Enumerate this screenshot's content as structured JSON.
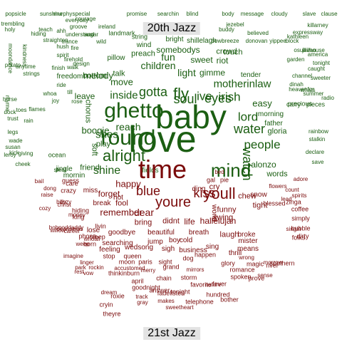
{
  "labels": {
    "top": "20th Jazz",
    "bottom": "21st Jazz"
  },
  "colors": {
    "top_cloud": "#1b5e12",
    "bottom_cloud": "#7a0a0a",
    "label_bg": "#e3e3e3"
  },
  "words": [
    {
      "t": "baby",
      "g": "top"
    },
    {
      "t": "love",
      "g": "top"
    },
    {
      "t": "ghetto",
      "g": "top"
    },
    {
      "t": "round",
      "g": "top"
    },
    {
      "t": "alright",
      "g": "top"
    },
    {
      "t": "mind",
      "g": "top"
    },
    {
      "t": "soul",
      "g": "top"
    },
    {
      "t": "eyes",
      "g": "top"
    },
    {
      "t": "gotta",
      "g": "top"
    },
    {
      "t": "fly",
      "g": "top"
    },
    {
      "t": "ive",
      "g": "top"
    },
    {
      "t": "irish",
      "g": "top"
    },
    {
      "t": "lord",
      "g": "top"
    },
    {
      "t": "water",
      "g": "top"
    },
    {
      "t": "watch",
      "g": "top"
    },
    {
      "t": "motherinlaw",
      "g": "top"
    },
    {
      "t": "shes",
      "g": "top"
    },
    {
      "t": "shine",
      "g": "top"
    },
    {
      "t": "people",
      "g": "top"
    },
    {
      "t": "inside",
      "g": "top"
    },
    {
      "t": "reach",
      "g": "top"
    },
    {
      "t": "boogie",
      "g": "top"
    },
    {
      "t": "melody",
      "g": "top"
    },
    {
      "t": "move",
      "g": "top"
    },
    {
      "t": "light",
      "g": "top"
    },
    {
      "t": "gimme",
      "g": "top"
    },
    {
      "t": "children",
      "g": "top"
    },
    {
      "t": "easy",
      "g": "top"
    },
    {
      "t": "fun",
      "g": "top"
    },
    {
      "t": "sweet",
      "g": "top"
    },
    {
      "t": "riot",
      "g": "top"
    },
    {
      "t": "somebodys",
      "g": "top"
    },
    {
      "t": "preach",
      "g": "top"
    },
    {
      "t": "bottom",
      "g": "top"
    },
    {
      "t": "talk",
      "g": "top"
    },
    {
      "t": "leave",
      "g": "top"
    },
    {
      "t": "touch",
      "g": "top"
    },
    {
      "t": "crowd",
      "g": "top"
    },
    {
      "t": "tender",
      "g": "top"
    },
    {
      "t": "morning",
      "g": "top"
    },
    {
      "t": "father",
      "g": "top"
    },
    {
      "t": "gloria",
      "g": "top"
    },
    {
      "t": "alonzo",
      "g": "top"
    },
    {
      "t": "words",
      "g": "top"
    },
    {
      "t": "fields",
      "g": "top"
    },
    {
      "t": "play",
      "g": "top"
    },
    {
      "t": "soft",
      "g": "top"
    },
    {
      "t": "chorus",
      "g": "top"
    },
    {
      "t": "friend",
      "g": "top"
    },
    {
      "t": "mornin",
      "g": "top"
    },
    {
      "t": "jingle",
      "g": "top"
    },
    {
      "t": "freedom",
      "g": "top"
    },
    {
      "t": "pillow",
      "g": "top"
    },
    {
      "t": "wind",
      "g": "top"
    },
    {
      "t": "bright",
      "g": "top"
    },
    {
      "t": "shillelagh",
      "g": "top"
    },
    {
      "t": "landmark",
      "g": "top"
    },
    {
      "t": "string",
      "g": "top"
    },
    {
      "t": "promise",
      "g": "top"
    },
    {
      "t": "searchin",
      "g": "top"
    },
    {
      "t": "blind",
      "g": "top"
    },
    {
      "t": "body",
      "g": "top"
    },
    {
      "t": "message",
      "g": "top"
    },
    {
      "t": "cloudy",
      "g": "top"
    },
    {
      "t": "slave",
      "g": "top"
    },
    {
      "t": "clause",
      "g": "top"
    },
    {
      "t": "popsicle",
      "g": "top"
    },
    {
      "t": "sunshine",
      "g": "top"
    },
    {
      "t": "special",
      "g": "top"
    },
    {
      "t": "trembling",
      "g": "top"
    },
    {
      "t": "everyday",
      "g": "top"
    },
    {
      "t": "courage",
      "g": "top"
    },
    {
      "t": "holy",
      "g": "top"
    },
    {
      "t": "teach",
      "g": "top"
    },
    {
      "t": "ahh",
      "g": "top"
    },
    {
      "t": "groove",
      "g": "top"
    },
    {
      "t": "ireland",
      "g": "top"
    },
    {
      "t": "understand",
      "g": "top"
    },
    {
      "t": "jezebel",
      "g": "top"
    },
    {
      "t": "buddy",
      "g": "top"
    },
    {
      "t": "believed",
      "g": "top"
    },
    {
      "t": "expressway",
      "g": "top"
    },
    {
      "t": "killarney",
      "g": "top"
    },
    {
      "t": "kathleen",
      "g": "top"
    },
    {
      "t": "wild",
      "g": "top"
    },
    {
      "t": "sugar",
      "g": "top"
    },
    {
      "t": "trance",
      "g": "top"
    },
    {
      "t": "hush",
      "g": "top"
    },
    {
      "t": "bowbreeze",
      "g": "top"
    },
    {
      "t": "donovan",
      "g": "top"
    },
    {
      "t": "yippee",
      "g": "top"
    },
    {
      "t": "block",
      "g": "top"
    },
    {
      "t": "osullivan",
      "g": "top"
    },
    {
      "t": "jailhouse",
      "g": "top"
    },
    {
      "t": "america",
      "g": "top"
    },
    {
      "t": "tonight",
      "g": "top"
    },
    {
      "t": "garden",
      "g": "top"
    },
    {
      "t": "caught",
      "g": "top"
    },
    {
      "t": "sweeter",
      "g": "top"
    },
    {
      "t": "channel",
      "g": "top"
    },
    {
      "t": "dinah",
      "g": "top"
    },
    {
      "t": "whats",
      "g": "top"
    },
    {
      "t": "summer",
      "g": "top"
    },
    {
      "t": "radio",
      "g": "top"
    },
    {
      "t": "heavenfor",
      "g": "top"
    },
    {
      "t": "pieces",
      "g": "top"
    },
    {
      "t": "precious",
      "g": "top"
    },
    {
      "t": "carry",
      "g": "top"
    },
    {
      "t": "stalkin",
      "g": "top"
    },
    {
      "t": "declare",
      "g": "top"
    },
    {
      "t": "rainbow",
      "g": "top"
    },
    {
      "t": "save",
      "g": "top"
    },
    {
      "t": "ocean",
      "g": "top"
    },
    {
      "t": "cheek",
      "g": "top"
    },
    {
      "t": "giving",
      "g": "top"
    },
    {
      "t": "kick",
      "g": "top"
    },
    {
      "t": "trust",
      "g": "top"
    },
    {
      "t": "rhyme",
      "g": "top"
    },
    {
      "t": "horse",
      "g": "top"
    },
    {
      "t": "toes",
      "g": "top"
    },
    {
      "t": "dock",
      "g": "top"
    },
    {
      "t": "rain",
      "g": "top"
    },
    {
      "t": "legs",
      "g": "top"
    },
    {
      "t": "wade",
      "g": "top"
    },
    {
      "t": "susan",
      "g": "top"
    },
    {
      "t": "leroy",
      "g": "top"
    },
    {
      "t": "steal",
      "g": "top"
    },
    {
      "t": "straighten",
      "g": "top"
    },
    {
      "t": "hiding",
      "g": "top"
    },
    {
      "t": "fire",
      "g": "top"
    },
    {
      "t": "firehold",
      "g": "top"
    },
    {
      "t": "spirit",
      "g": "top"
    },
    {
      "t": "walk",
      "g": "top"
    },
    {
      "t": "design",
      "g": "top"
    },
    {
      "t": "kindness",
      "g": "top"
    },
    {
      "t": "moondance",
      "g": "top"
    },
    {
      "t": "anytime",
      "g": "top"
    },
    {
      "t": "strings",
      "g": "top"
    },
    {
      "t": "potato",
      "g": "top"
    },
    {
      "t": "finish",
      "g": "top"
    },
    {
      "t": "murphy",
      "g": "top"
    },
    {
      "t": "ride",
      "g": "top"
    },
    {
      "t": "whoa",
      "g": "top"
    },
    {
      "t": "flames",
      "g": "top"
    },
    {
      "t": "joy",
      "g": "top"
    },
    {
      "t": "rose",
      "g": "top"
    },
    {
      "t": "till",
      "g": "top"
    },
    {
      "t": "time",
      "g": "bottom"
    },
    {
      "t": "youll",
      "g": "bottom"
    },
    {
      "t": "youre",
      "g": "bottom"
    },
    {
      "t": "kiss",
      "g": "bottom"
    },
    {
      "t": "blue",
      "g": "bottom"
    },
    {
      "t": "happy",
      "g": "bottom"
    },
    {
      "t": "dear",
      "g": "bottom"
    },
    {
      "t": "remember",
      "g": "bottom"
    },
    {
      "t": "bring",
      "g": "bottom"
    },
    {
      "t": "didnt",
      "g": "bottom"
    },
    {
      "t": "life",
      "g": "bottom"
    },
    {
      "t": "forget",
      "g": "bottom"
    },
    {
      "t": "fool",
      "g": "bottom"
    },
    {
      "t": "hot",
      "g": "bottom"
    },
    {
      "t": "break",
      "g": "bottom"
    },
    {
      "t": "miss",
      "g": "bottom"
    },
    {
      "t": "goodbye",
      "g": "bottom"
    },
    {
      "t": "beautiful",
      "g": "bottom"
    },
    {
      "t": "breath",
      "g": "bottom"
    },
    {
      "t": "searching",
      "g": "bottom"
    },
    {
      "t": "jump",
      "g": "bottom"
    },
    {
      "t": "boy",
      "g": "bottom"
    },
    {
      "t": "cold",
      "g": "bottom"
    },
    {
      "t": "feeling",
      "g": "bottom"
    },
    {
      "t": "wedsong",
      "g": "bottom"
    },
    {
      "t": "sigh",
      "g": "bottom"
    },
    {
      "t": "business",
      "g": "bottom"
    },
    {
      "t": "hallelujah",
      "g": "bottom"
    },
    {
      "t": "laugh",
      "g": "bottom"
    },
    {
      "t": "funny",
      "g": "bottom"
    },
    {
      "t": "swing",
      "g": "bottom"
    },
    {
      "t": "chew",
      "g": "bottom"
    },
    {
      "t": "snow",
      "g": "bottom"
    },
    {
      "t": "tight",
      "g": "bottom"
    },
    {
      "t": "cry",
      "g": "bottom"
    },
    {
      "t": "world",
      "g": "bottom"
    },
    {
      "t": "ding",
      "g": "bottom"
    },
    {
      "t": "broke",
      "g": "bottom"
    },
    {
      "t": "mister",
      "g": "bottom"
    },
    {
      "t": "sing",
      "g": "bottom"
    },
    {
      "t": "means",
      "g": "bottom"
    },
    {
      "t": "thrill",
      "g": "bottom"
    },
    {
      "t": "magic",
      "g": "bottom"
    },
    {
      "t": "river",
      "g": "bottom"
    },
    {
      "t": "southern",
      "g": "bottom"
    },
    {
      "t": "folks",
      "g": "bottom"
    },
    {
      "t": "blessed",
      "g": "bottom"
    },
    {
      "t": "zinga",
      "g": "bottom"
    },
    {
      "t": "coffee",
      "g": "bottom"
    },
    {
      "t": "simply",
      "g": "bottom"
    },
    {
      "t": "bubble",
      "g": "bottom"
    },
    {
      "t": "dirty",
      "g": "bottom"
    },
    {
      "t": "singin",
      "g": "bottom"
    },
    {
      "t": "flowers",
      "g": "bottom"
    },
    {
      "t": "adore",
      "g": "bottom"
    },
    {
      "t": "count",
      "g": "bottom"
    },
    {
      "t": "lead",
      "g": "bottom"
    },
    {
      "t": "spirits",
      "g": "bottom"
    },
    {
      "t": "cozy",
      "g": "bottom"
    },
    {
      "t": "money",
      "g": "bottom"
    },
    {
      "t": "hiding",
      "g": "bottom"
    },
    {
      "t": "king",
      "g": "bottom"
    },
    {
      "t": "lose",
      "g": "bottom"
    },
    {
      "t": "sleep",
      "g": "bottom"
    },
    {
      "t": "born",
      "g": "bottom"
    },
    {
      "t": "livin",
      "g": "bottom"
    },
    {
      "t": "phone",
      "g": "bottom"
    },
    {
      "t": "stop",
      "g": "bottom"
    },
    {
      "t": "moon",
      "g": "bottom"
    },
    {
      "t": "paris",
      "g": "bottom"
    },
    {
      "t": "sight",
      "g": "bottom"
    },
    {
      "t": "dog",
      "g": "bottom"
    },
    {
      "t": "happen",
      "g": "bottom"
    },
    {
      "t": "glory",
      "g": "bottom"
    },
    {
      "t": "romance",
      "g": "bottom"
    },
    {
      "t": "spoken",
      "g": "bottom"
    },
    {
      "t": "prove",
      "g": "bottom"
    },
    {
      "t": "grand",
      "g": "bottom"
    },
    {
      "t": "burn",
      "g": "bottom"
    },
    {
      "t": "queen",
      "g": "bottom"
    },
    {
      "t": "thinkin",
      "g": "bottom"
    },
    {
      "t": "storm",
      "g": "bottom"
    },
    {
      "t": "chain",
      "g": "bottom"
    },
    {
      "t": "goodnight",
      "g": "bottom"
    },
    {
      "t": "april",
      "g": "bottom"
    },
    {
      "t": "answer",
      "g": "bottom"
    },
    {
      "t": "tonight",
      "g": "bottom"
    },
    {
      "t": "hundred",
      "g": "bottom"
    },
    {
      "t": "favorite",
      "g": "bottom"
    },
    {
      "t": "fever",
      "g": "bottom"
    },
    {
      "t": "fadelisten",
      "g": "bottom"
    },
    {
      "t": "makes",
      "g": "bottom"
    },
    {
      "t": "sweetheart",
      "g": "bottom"
    },
    {
      "t": "telephone",
      "g": "bottom"
    },
    {
      "t": "bother",
      "g": "bottom"
    },
    {
      "t": "cryin",
      "g": "bottom"
    },
    {
      "t": "theyre",
      "g": "bottom"
    },
    {
      "t": "roxie",
      "g": "bottom"
    },
    {
      "t": "track",
      "g": "bottom"
    },
    {
      "t": "gray",
      "g": "bottom"
    },
    {
      "t": "dream",
      "g": "bottom"
    },
    {
      "t": "merry",
      "g": "bottom"
    },
    {
      "t": "accustomed",
      "g": "bottom"
    },
    {
      "t": "weep",
      "g": "bottom"
    },
    {
      "t": "linger",
      "g": "bottom"
    },
    {
      "t": "imagine",
      "g": "bottom"
    },
    {
      "t": "rest",
      "g": "bottom"
    },
    {
      "t": "rockin",
      "g": "bottom"
    },
    {
      "t": "whoall",
      "g": "bottom"
    },
    {
      "t": "career",
      "g": "bottom"
    },
    {
      "t": "deanseras",
      "g": "bottom"
    },
    {
      "t": "bobpoddaddy",
      "g": "bottom"
    },
    {
      "t": "raise",
      "g": "bottom"
    },
    {
      "t": "cozy",
      "g": "bottom"
    },
    {
      "t": "christ",
      "g": "bottom"
    },
    {
      "t": "willow",
      "g": "bottom"
    },
    {
      "t": "guess",
      "g": "bottom"
    },
    {
      "t": "care",
      "g": "bottom"
    },
    {
      "t": "billy",
      "g": "bottom"
    },
    {
      "t": "crazy",
      "g": "bottom"
    },
    {
      "t": "dong",
      "g": "bottom"
    },
    {
      "t": "bail",
      "g": "bottom"
    },
    {
      "t": "vow",
      "g": "bottom"
    },
    {
      "t": "mirrors",
      "g": "bottom"
    },
    {
      "t": "gal",
      "g": "bottom"
    },
    {
      "t": "pie",
      "g": "bottom"
    },
    {
      "t": "nature",
      "g": "bottom"
    },
    {
      "t": "bed",
      "g": "bottom"
    },
    {
      "t": "wrong",
      "g": "bottom"
    },
    {
      "t": "sense",
      "g": "bottom"
    },
    {
      "t": "morrow",
      "g": "bottom"
    },
    {
      "t": "park",
      "g": "bottom"
    }
  ]
}
